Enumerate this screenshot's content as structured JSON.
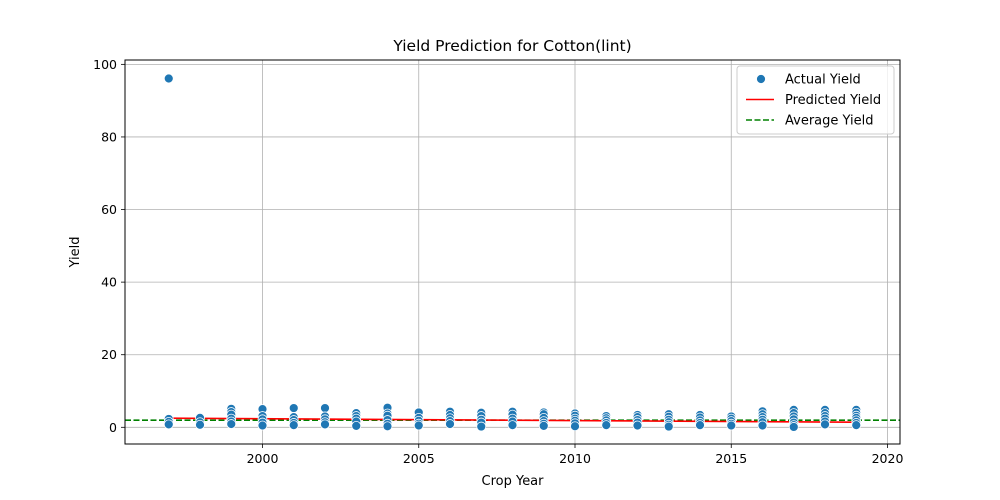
{
  "chart_data": {
    "type": "scatter",
    "title": "Yield Prediction for Cotton(lint)",
    "xlabel": "Crop Year",
    "ylabel": "Yield",
    "xlim": [
      1995.6,
      2020.4
    ],
    "ylim": [
      -4.6,
      101.2
    ],
    "x_ticks": [
      2000,
      2005,
      2010,
      2015,
      2020
    ],
    "y_ticks": [
      0,
      20,
      40,
      60,
      80,
      100
    ],
    "grid": true,
    "legend_position": "top-right",
    "series": [
      {
        "name": "Actual Yield",
        "kind": "scatter",
        "color": "#1f77b4",
        "points": [
          [
            1997,
            96.1
          ],
          [
            1997,
            2.3
          ],
          [
            1997,
            1.5
          ],
          [
            1997,
            0.8
          ],
          [
            1998,
            2.6
          ],
          [
            1998,
            1.4
          ],
          [
            1998,
            0.7
          ],
          [
            1999,
            5.1
          ],
          [
            1999,
            4.2
          ],
          [
            1999,
            3.5
          ],
          [
            1999,
            2.4
          ],
          [
            1999,
            1.6
          ],
          [
            1999,
            0.9
          ],
          [
            2000,
            5.0
          ],
          [
            2000,
            3.1
          ],
          [
            2000,
            2.2
          ],
          [
            2000,
            1.3
          ],
          [
            2000,
            0.5
          ],
          [
            2001,
            5.3
          ],
          [
            2001,
            2.8
          ],
          [
            2001,
            2.0
          ],
          [
            2001,
            1.2
          ],
          [
            2001,
            0.6
          ],
          [
            2002,
            5.3
          ],
          [
            2002,
            3.0
          ],
          [
            2002,
            2.2
          ],
          [
            2002,
            1.4
          ],
          [
            2002,
            0.8
          ],
          [
            2003,
            3.9
          ],
          [
            2003,
            3.1
          ],
          [
            2003,
            2.4
          ],
          [
            2003,
            1.6
          ],
          [
            2003,
            0.4
          ],
          [
            2004,
            5.4
          ],
          [
            2004,
            3.8
          ],
          [
            2004,
            3.2
          ],
          [
            2004,
            2.0
          ],
          [
            2004,
            1.0
          ],
          [
            2004,
            0.3
          ],
          [
            2005,
            4.1
          ],
          [
            2005,
            2.6
          ],
          [
            2005,
            1.8
          ],
          [
            2005,
            1.0
          ],
          [
            2005,
            0.5
          ],
          [
            2006,
            4.3
          ],
          [
            2006,
            3.4
          ],
          [
            2006,
            2.5
          ],
          [
            2006,
            1.7
          ],
          [
            2006,
            0.9
          ],
          [
            2007,
            4.0
          ],
          [
            2007,
            3.1
          ],
          [
            2007,
            2.1
          ],
          [
            2007,
            1.3
          ],
          [
            2007,
            0.2
          ],
          [
            2008,
            4.3
          ],
          [
            2008,
            3.5
          ],
          [
            2008,
            2.4
          ],
          [
            2008,
            1.6
          ],
          [
            2008,
            0.6
          ],
          [
            2009,
            4.1
          ],
          [
            2009,
            3.6
          ],
          [
            2009,
            2.6
          ],
          [
            2009,
            1.7
          ],
          [
            2009,
            1.0
          ],
          [
            2009,
            0.4
          ],
          [
            2010,
            3.8
          ],
          [
            2010,
            3.2
          ],
          [
            2010,
            2.4
          ],
          [
            2010,
            1.8
          ],
          [
            2010,
            1.1
          ],
          [
            2010,
            0.3
          ],
          [
            2011,
            3.1
          ],
          [
            2011,
            2.5
          ],
          [
            2011,
            1.9
          ],
          [
            2011,
            1.2
          ],
          [
            2011,
            0.6
          ],
          [
            2012,
            3.4
          ],
          [
            2012,
            2.8
          ],
          [
            2012,
            2.0
          ],
          [
            2012,
            1.3
          ],
          [
            2012,
            0.5
          ],
          [
            2013,
            3.6
          ],
          [
            2013,
            2.9
          ],
          [
            2013,
            2.1
          ],
          [
            2013,
            1.4
          ],
          [
            2013,
            0.7
          ],
          [
            2013,
            0.2
          ],
          [
            2014,
            3.4
          ],
          [
            2014,
            2.7
          ],
          [
            2014,
            1.9
          ],
          [
            2014,
            1.2
          ],
          [
            2014,
            0.6
          ],
          [
            2015,
            3.0
          ],
          [
            2015,
            2.4
          ],
          [
            2015,
            1.7
          ],
          [
            2015,
            1.0
          ],
          [
            2015,
            0.5
          ],
          [
            2016,
            4.4
          ],
          [
            2016,
            3.6
          ],
          [
            2016,
            2.8
          ],
          [
            2016,
            2.1
          ],
          [
            2016,
            1.4
          ],
          [
            2016,
            0.5
          ],
          [
            2017,
            4.8
          ],
          [
            2017,
            3.9
          ],
          [
            2017,
            3.0
          ],
          [
            2017,
            2.2
          ],
          [
            2017,
            1.3
          ],
          [
            2017,
            0.6
          ],
          [
            2017,
            0.1
          ],
          [
            2018,
            4.8
          ],
          [
            2018,
            3.9
          ],
          [
            2018,
            3.1
          ],
          [
            2018,
            2.4
          ],
          [
            2018,
            1.6
          ],
          [
            2018,
            0.8
          ],
          [
            2019,
            4.8
          ],
          [
            2019,
            4.0
          ],
          [
            2019,
            3.2
          ],
          [
            2019,
            2.6
          ],
          [
            2019,
            1.9
          ],
          [
            2019,
            1.2
          ],
          [
            2019,
            0.6
          ]
        ]
      },
      {
        "name": "Predicted Yield",
        "kind": "line",
        "color": "#ff0000",
        "x": [
          1997,
          2019
        ],
        "y": [
          2.5,
          1.4
        ]
      },
      {
        "name": "Average Yield",
        "kind": "hline",
        "color": "#008000",
        "y": 1.97
      }
    ]
  }
}
